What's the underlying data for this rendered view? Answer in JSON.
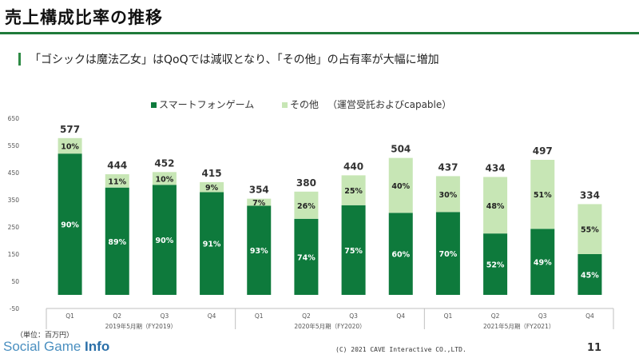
{
  "header": {
    "title": "売上構成比率の推移",
    "subtitle": "「ゴシックは魔法乙女」はQoQでは減収となり、「その他」の占有率が大幅に増加"
  },
  "legend": {
    "items": [
      "スマートフォンゲーム",
      "その他"
    ],
    "note": "（運営受託およびcapable）"
  },
  "colors": {
    "smartphone": "#0e7a3c",
    "other": "#c7e6b5",
    "accent": "#1f7a3a"
  },
  "footer": {
    "unit_note": "（単位：百万円）",
    "watermark_a": "Social Game ",
    "watermark_b": "Info",
    "copyright": "(C) 2021 CAVE Interactive CO.,LTD.",
    "page_number": "11"
  },
  "chart_data": {
    "type": "bar",
    "stacked": true,
    "y_ticks": [
      "650",
      "550",
      "450",
      "350",
      "250",
      "150",
      "50",
      "-50"
    ],
    "ylim": [
      -50,
      650
    ],
    "categories": [
      "Q1",
      "Q2",
      "Q3",
      "Q4",
      "Q1",
      "Q2",
      "Q3",
      "Q4",
      "Q1",
      "Q2",
      "Q3",
      "Q4"
    ],
    "groups": [
      {
        "label": "2019年5月期（FY2019）",
        "start": 0,
        "end": 3
      },
      {
        "label": "2020年5月期（FY2020）",
        "start": 4,
        "end": 7
      },
      {
        "label": "2021年5月期（FY2021）",
        "start": 8,
        "end": 11
      }
    ],
    "totals": [
      577,
      444,
      452,
      415,
      354,
      380,
      440,
      504,
      437,
      434,
      497,
      334
    ],
    "series": [
      {
        "name": "スマートフォンゲーム",
        "pct_labels": [
          "90%",
          "89%",
          "90%",
          "91%",
          "93%",
          "74%",
          "75%",
          "60%",
          "70%",
          "52%",
          "49%",
          "45%"
        ],
        "values": [
          520,
          395,
          405,
          378,
          328,
          280,
          330,
          302,
          305,
          226,
          243,
          150
        ]
      },
      {
        "name": "その他",
        "pct_labels": [
          "10%",
          "11%",
          "10%",
          "9%",
          "7%",
          "26%",
          "25%",
          "40%",
          "30%",
          "48%",
          "51%",
          "55%"
        ],
        "values": [
          57,
          49,
          47,
          37,
          26,
          100,
          110,
          202,
          132,
          208,
          254,
          184
        ]
      }
    ]
  }
}
